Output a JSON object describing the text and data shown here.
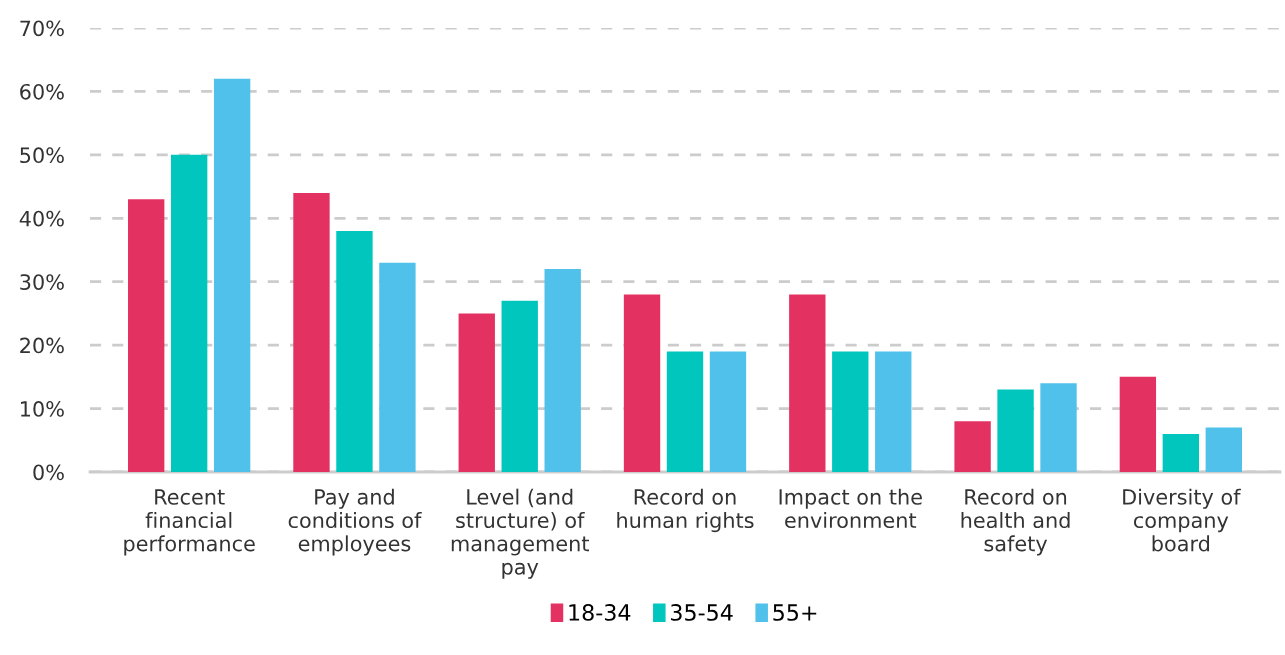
{
  "chart_data": {
    "type": "bar",
    "categories": [
      "Recent\nfinancial\nperformance",
      "Pay and\nconditions of\nemployees",
      "Level (and\nstructure) of\nmanagement\npay",
      "Record on\nhuman rights",
      "Impact on the\nenvironment",
      "Record on\nhealth and\nsafety",
      "Diversity of\ncompany\nboard"
    ],
    "series": [
      {
        "name": "18-34",
        "color": "#e33261",
        "values": [
          43,
          44,
          25,
          28,
          28,
          8,
          15
        ]
      },
      {
        "name": "35-54",
        "color": "#00c6be",
        "values": [
          50,
          38,
          27,
          19,
          19,
          13,
          6
        ]
      },
      {
        "name": "55+",
        "color": "#50c1ea",
        "values": [
          62,
          33,
          32,
          19,
          19,
          14,
          7
        ]
      }
    ],
    "ylim": [
      0,
      70
    ],
    "yticks": [
      {
        "value": 0,
        "label": "0%"
      },
      {
        "value": 10,
        "label": "10%"
      },
      {
        "value": 20,
        "label": "20%"
      },
      {
        "value": 30,
        "label": "30%"
      },
      {
        "value": 40,
        "label": "40%"
      },
      {
        "value": 50,
        "label": "50%"
      },
      {
        "value": 60,
        "label": "60%"
      },
      {
        "value": 70,
        "label": "70%"
      }
    ],
    "grid": "y",
    "legend": "bottom"
  }
}
